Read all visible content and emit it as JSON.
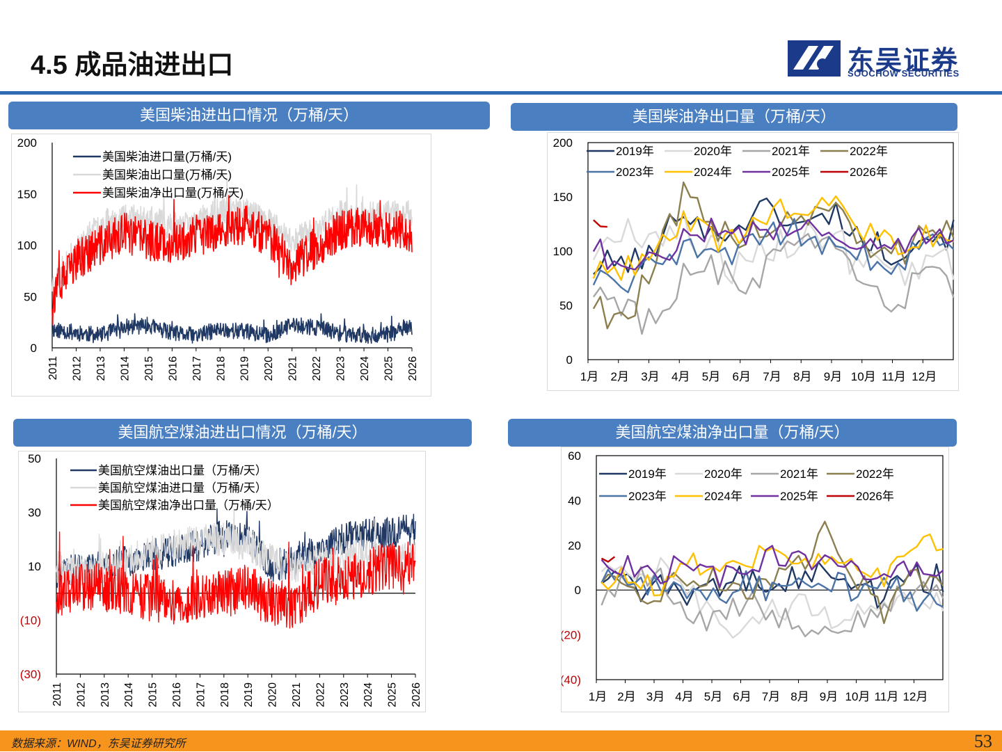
{
  "header": {
    "title": "4.5 成品油进出口"
  },
  "logo": {
    "cn": "东吴证券",
    "en": "SOOCHOW SECURITIES"
  },
  "footer": {
    "source": "数据来源：WIND，东吴证券研究所",
    "page": "53"
  },
  "colors": {
    "brand_blue": "#2f6bb3",
    "banner_blue": "#4a7fc1",
    "footer_orange": "#f7941d"
  },
  "panels": {
    "diesel_trade": {
      "banner": "美国柴油进出口情况（万桶/天）"
    },
    "diesel_net": {
      "banner": "美国柴油净出口量（万桶/天）"
    },
    "jet_trade": {
      "banner": "美国航空煤油进出口情况（万桶/天）"
    },
    "jet_net": {
      "banner": "美国航空煤油净出口量（万桶/天）"
    }
  },
  "chart_data": [
    {
      "id": "diesel_trade",
      "type": "line",
      "ylim": [
        0,
        200
      ],
      "yticks": [
        "0",
        "50",
        "100",
        "150",
        "200"
      ],
      "xticks": [
        "2011",
        "2012",
        "2013",
        "2014",
        "2015",
        "2016",
        "2017",
        "2018",
        "2019",
        "2020",
        "2021",
        "2022",
        "2023",
        "2024",
        "2025",
        "2026"
      ],
      "x_start": 2011,
      "x_end": 2026,
      "series": [
        {
          "name": "美国柴油进口量(万桶/天)",
          "color": "#1f3864",
          "width": 1.6,
          "anchors": [
            [
              2011,
              18
            ],
            [
              2012,
              15
            ],
            [
              2013,
              12
            ],
            [
              2014,
              20
            ],
            [
              2015,
              22
            ],
            [
              2016,
              14
            ],
            [
              2017,
              12
            ],
            [
              2018,
              18
            ],
            [
              2019,
              16
            ],
            [
              2020,
              12
            ],
            [
              2021,
              22
            ],
            [
              2022,
              20
            ],
            [
              2023,
              14
            ],
            [
              2024,
              12
            ],
            [
              2025,
              13
            ],
            [
              2026,
              20
            ]
          ],
          "noise": 8,
          "seed": 11
        },
        {
          "name": "美国柴油出口量(万桶/天)",
          "color": "#d9d9d9",
          "width": 1.6,
          "anchors": [
            [
              2011,
              62
            ],
            [
              2012,
              95
            ],
            [
              2013,
              120
            ],
            [
              2014,
              128
            ],
            [
              2015,
              125
            ],
            [
              2016,
              118
            ],
            [
              2017,
              122
            ],
            [
              2018,
              132
            ],
            [
              2019,
              135
            ],
            [
              2020,
              122
            ],
            [
              2021,
              105
            ],
            [
              2022,
              115
            ],
            [
              2023,
              130
            ],
            [
              2024,
              128
            ],
            [
              2025,
              130
            ],
            [
              2026,
              130
            ]
          ],
          "noise": 14,
          "seed": 23
        },
        {
          "name": "美国柴油净出口量(万桶/天)",
          "color": "#ff0000",
          "width": 1.6,
          "anchors": [
            [
              2011,
              48
            ],
            [
              2012,
              85
            ],
            [
              2013,
              100
            ],
            [
              2014,
              112
            ],
            [
              2015,
              105
            ],
            [
              2016,
              102
            ],
            [
              2017,
              108
            ],
            [
              2018,
              115
            ],
            [
              2019,
              120
            ],
            [
              2020,
              108
            ],
            [
              2021,
              80
            ],
            [
              2022,
              98
            ],
            [
              2023,
              115
            ],
            [
              2024,
              118
            ],
            [
              2025,
              118
            ],
            [
              2026,
              112
            ]
          ],
          "noise": 20,
          "seed": 37
        }
      ]
    },
    {
      "id": "diesel_net",
      "type": "line",
      "ylim": [
        0,
        200
      ],
      "yticks": [
        "0",
        "50",
        "100",
        "150",
        "200"
      ],
      "xticks": [
        "1月",
        "2月",
        "3月",
        "4月",
        "5月",
        "6月",
        "7月",
        "8月",
        "9月",
        "10月",
        "11月",
        "12月"
      ],
      "series": [
        {
          "name": "2019年",
          "color": "#1f3864",
          "anchors": [
            85,
            90,
            95,
            145,
            110,
            130,
            140,
            120,
            138,
            110,
            100,
            115
          ],
          "noise": 14,
          "seed": 101
        },
        {
          "name": "2020年",
          "color": "#d9d9d9",
          "anchors": [
            100,
            115,
            120,
            120,
            100,
            80,
            105,
            115,
            110,
            85,
            80,
            90
          ],
          "noise": 18,
          "seed": 102
        },
        {
          "name": "2021年",
          "color": "#a6a6a6",
          "anchors": [
            65,
            55,
            30,
            75,
            85,
            60,
            95,
            100,
            100,
            65,
            55,
            70
          ],
          "noise": 16,
          "seed": 103
        },
        {
          "name": "2022年",
          "color": "#8c7f4f",
          "anchors": [
            55,
            35,
            80,
            150,
            110,
            120,
            125,
            135,
            145,
            100,
            90,
            125
          ],
          "noise": 18,
          "seed": 104
        },
        {
          "name": "2023年",
          "color": "#4a73a8",
          "anchors": [
            75,
            70,
            85,
            100,
            90,
            105,
            115,
            118,
            105,
            95,
            85,
            110
          ],
          "noise": 14,
          "seed": 105
        },
        {
          "name": "2024年",
          "color": "#ffc000",
          "anchors": [
            80,
            85,
            95,
            130,
            110,
            115,
            140,
            130,
            155,
            120,
            105,
            115
          ],
          "noise": 12,
          "seed": 106
        },
        {
          "name": "2025年",
          "color": "#7030a0",
          "anchors": [
            105,
            80,
            90,
            115,
            120,
            115,
            120,
            128,
            115,
            110,
            105,
            115
          ],
          "noise": 12,
          "seed": 107
        },
        {
          "name": "2026年",
          "color": "#c00000",
          "partial": 0.55,
          "anchors": [
            130,
            110
          ],
          "noise": 3,
          "seed": 108
        }
      ]
    },
    {
      "id": "jet_trade",
      "type": "line",
      "ylim": [
        -30,
        50
      ],
      "yticks": [
        "(30)",
        "(10)",
        "10",
        "30",
        "50"
      ],
      "xticks": [
        "2011",
        "2012",
        "2013",
        "2014",
        "2015",
        "2016",
        "2017",
        "2018",
        "2019",
        "2020",
        "2021",
        "2022",
        "2023",
        "2024",
        "2025",
        "2026"
      ],
      "x_start": 2011,
      "x_end": 2026,
      "series": [
        {
          "name": "美国航空煤油出口量（万桶/天）",
          "color": "#1f3864",
          "width": 1.4,
          "anchors": [
            [
              2011,
              8
            ],
            [
              2012,
              9
            ],
            [
              2013,
              10
            ],
            [
              2014,
              12
            ],
            [
              2015,
              14
            ],
            [
              2016,
              16
            ],
            [
              2017,
              18
            ],
            [
              2018,
              22
            ],
            [
              2019,
              20
            ],
            [
              2020,
              10
            ],
            [
              2021,
              12
            ],
            [
              2022,
              16
            ],
            [
              2023,
              20
            ],
            [
              2024,
              22
            ],
            [
              2025,
              22
            ],
            [
              2026,
              24
            ]
          ],
          "noise": 6,
          "seed": 211
        },
        {
          "name": "美国航空煤油进口量（万桶/天）",
          "color": "#d9d9d9",
          "width": 1.4,
          "anchors": [
            [
              2011,
              10
            ],
            [
              2012,
              8
            ],
            [
              2013,
              9
            ],
            [
              2014,
              12
            ],
            [
              2015,
              16
            ],
            [
              2016,
              18
            ],
            [
              2017,
              20
            ],
            [
              2018,
              20
            ],
            [
              2019,
              18
            ],
            [
              2020,
              12
            ],
            [
              2021,
              10
            ],
            [
              2022,
              12
            ],
            [
              2023,
              14
            ],
            [
              2024,
              14
            ],
            [
              2025,
              12
            ],
            [
              2026,
              14
            ]
          ],
          "noise": 6,
          "seed": 223
        },
        {
          "name": "美国航空煤油净出口量（万桶/天）",
          "color": "#ff0000",
          "width": 1.4,
          "anchors": [
            [
              2011,
              0
            ],
            [
              2012,
              2
            ],
            [
              2013,
              2
            ],
            [
              2014,
              0
            ],
            [
              2015,
              -2
            ],
            [
              2016,
              -3
            ],
            [
              2017,
              -2
            ],
            [
              2018,
              0
            ],
            [
              2019,
              2
            ],
            [
              2020,
              -4
            ],
            [
              2021,
              -5
            ],
            [
              2022,
              4
            ],
            [
              2023,
              5
            ],
            [
              2024,
              8
            ],
            [
              2025,
              10
            ],
            [
              2026,
              10
            ]
          ],
          "noise": 9,
          "seed": 237
        }
      ]
    },
    {
      "id": "jet_net",
      "type": "line",
      "ylim": [
        -40,
        60
      ],
      "yticks": [
        "(40)",
        "(20)",
        "0",
        "20",
        "40",
        "60"
      ],
      "xticks": [
        "1月",
        "2月",
        "3月",
        "4月",
        "5月",
        "6月",
        "7月",
        "8月",
        "9月",
        "10月",
        "11月",
        "12月"
      ],
      "series": [
        {
          "name": "2019年",
          "color": "#1f3864",
          "anchors": [
            5,
            0,
            2,
            -5,
            0,
            5,
            2,
            5,
            8,
            0,
            -2,
            5
          ],
          "noise": 7,
          "seed": 301
        },
        {
          "name": "2020年",
          "color": "#d9d9d9",
          "anchors": [
            10,
            5,
            10,
            0,
            -15,
            -20,
            -10,
            -5,
            -15,
            -10,
            -10,
            -5
          ],
          "noise": 6,
          "seed": 302
        },
        {
          "name": "2021年",
          "color": "#a6a6a6",
          "anchors": [
            -5,
            5,
            5,
            -10,
            -15,
            -5,
            -10,
            -15,
            -15,
            -15,
            -5,
            0
          ],
          "noise": 6,
          "seed": 303
        },
        {
          "name": "2022年",
          "color": "#8c7f4f",
          "anchors": [
            5,
            -5,
            0,
            5,
            5,
            0,
            5,
            10,
            30,
            5,
            -10,
            5
          ],
          "noise": 6,
          "seed": 304
        },
        {
          "name": "2023年",
          "color": "#4a73a8",
          "anchors": [
            5,
            0,
            5,
            0,
            -5,
            5,
            0,
            5,
            5,
            0,
            5,
            -5
          ],
          "noise": 6,
          "seed": 305
        },
        {
          "name": "2024年",
          "color": "#ffc000",
          "anchors": [
            5,
            5,
            0,
            15,
            5,
            10,
            20,
            15,
            10,
            10,
            5,
            20
          ],
          "noise": 5,
          "seed": 306
        },
        {
          "name": "2025年",
          "color": "#7030a0",
          "anchors": [
            15,
            10,
            5,
            15,
            5,
            10,
            15,
            15,
            10,
            10,
            5,
            10
          ],
          "noise": 5,
          "seed": 307
        },
        {
          "name": "2026年",
          "color": "#c00000",
          "partial": 0.5,
          "anchors": [
            15,
            12
          ],
          "noise": 3,
          "seed": 308
        }
      ]
    }
  ]
}
